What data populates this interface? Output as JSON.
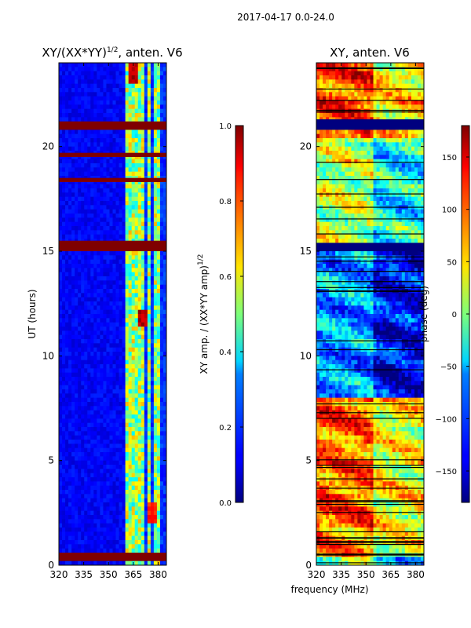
{
  "figure": {
    "suptitle": "2017-04-17 0.0-24.0",
    "xlabel": "frequency (MHz)"
  },
  "chart_data": [
    {
      "type": "heatmap",
      "title": "XY/(XX*YY)",
      "title_exp": "1/2",
      "title_suffix": ", anten. V6",
      "ylabel": "UT (hours)",
      "xlim": [
        320,
        385
      ],
      "ylim": [
        0,
        24
      ],
      "xticks": [
        "320",
        "335",
        "350",
        "365",
        "380"
      ],
      "xtick_values": [
        320,
        335,
        350,
        365,
        380
      ],
      "yticks": [
        "0",
        "5",
        "10",
        "15",
        "20"
      ],
      "ytick_values": [
        0,
        5,
        10,
        15,
        20
      ],
      "colorbar": {
        "label": "XY amp. / (XX*YY amp)",
        "label_exp": "1/2",
        "range": [
          0.0,
          1.0
        ],
        "ticks": [
          "0.0",
          "0.2",
          "0.4",
          "0.6",
          "0.8",
          "1.0"
        ],
        "tick_values": [
          0.0,
          0.2,
          0.4,
          0.6,
          0.8,
          1.0
        ]
      },
      "flagged_bands_ut": [
        [
          0.2,
          0.6
        ],
        [
          15.0,
          15.5
        ],
        [
          20.8,
          21.2
        ],
        [
          18.3,
          18.5
        ],
        [
          19.5,
          19.7
        ]
      ],
      "rfi_channels_mhz": [
        362,
        366,
        370,
        375,
        379
      ],
      "hot_spots": [
        {
          "ut": 23.5,
          "mhz": 365,
          "value": 1.0
        },
        {
          "ut": 11.8,
          "mhz": 370,
          "value": 1.0
        },
        {
          "ut": 2.5,
          "mhz": 376,
          "value": 0.9
        }
      ]
    },
    {
      "type": "heatmap",
      "title": "XY, anten. V6",
      "ylabel": "",
      "xlim": [
        320,
        385
      ],
      "ylim": [
        0,
        24
      ],
      "xticks": [
        "320",
        "335",
        "350",
        "365",
        "380"
      ],
      "xtick_values": [
        320,
        335,
        350,
        365,
        380
      ],
      "yticks": [
        "0",
        "5",
        "10",
        "15",
        "20"
      ],
      "ytick_values": [
        0,
        5,
        10,
        15,
        20
      ],
      "colorbar": {
        "label": "phase (deg)",
        "range": [
          -180,
          180
        ],
        "ticks": [
          "−150",
          "−100",
          "−50",
          "0",
          "50",
          "100",
          "150"
        ],
        "tick_values": [
          -150,
          -100,
          -50,
          0,
          50,
          100,
          150
        ]
      },
      "phase_regions": [
        {
          "ut": [
            0.5,
            8.0
          ],
          "dominant_phase": 100
        },
        {
          "ut": [
            8.0,
            15.0
          ],
          "dominant_phase": -80
        },
        {
          "ut": [
            15.5,
            20.5
          ],
          "dominant_phase": 20
        },
        {
          "ut": [
            20.5,
            24.0
          ],
          "dominant_phase": 120
        }
      ]
    }
  ]
}
